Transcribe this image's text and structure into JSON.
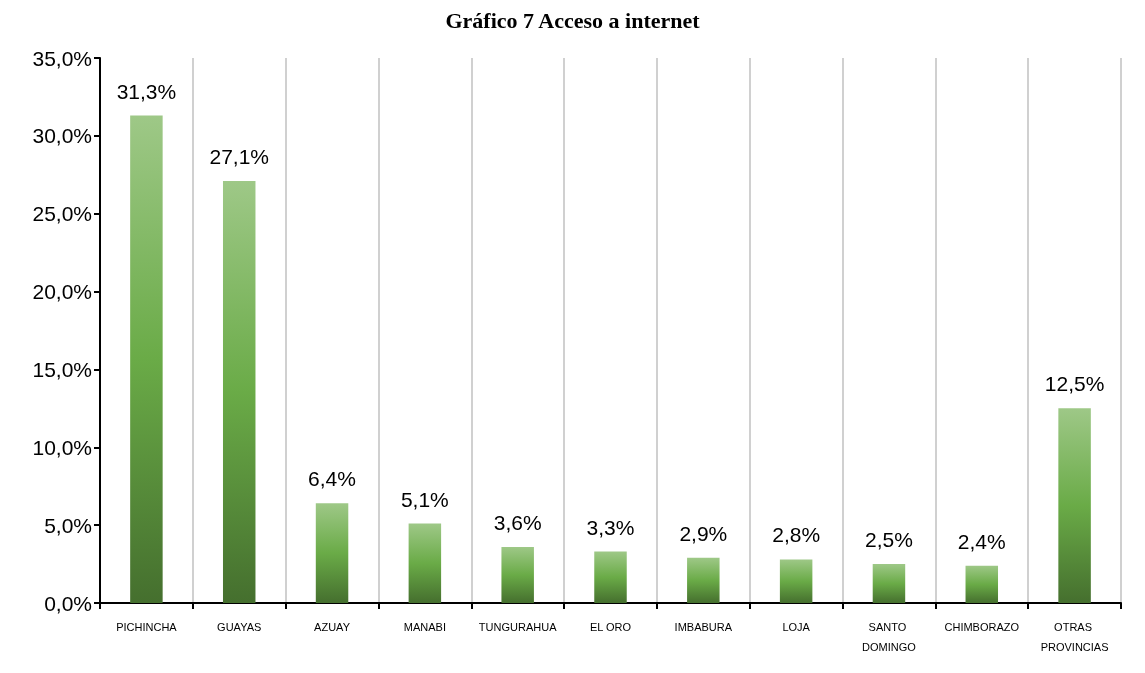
{
  "chart_data": {
    "type": "bar",
    "title": "Gráfico 7 Acceso a internet",
    "categories": [
      "PICHINCHA",
      "GUAYAS",
      "AZUAY",
      "MANABI",
      "TUNGURAHUA",
      "EL ORO",
      "IMBABURA",
      "LOJA",
      "SANTO DOMINGO",
      "CHIMBORAZO",
      "OTRAS PROVINCIAS"
    ],
    "values": [
      31.3,
      27.1,
      6.4,
      5.1,
      3.6,
      3.3,
      2.9,
      2.8,
      2.5,
      2.4,
      12.5
    ],
    "value_labels": [
      "31,3%",
      "27,1%",
      "6,4%",
      "5,1%",
      "3,6%",
      "3,3%",
      "2,9%",
      "2,8%",
      "2,5%",
      "2,4%",
      "12,5%"
    ],
    "color": "#6aab47",
    "ylim": [
      0,
      35
    ],
    "yticks": [
      {
        "value": 0,
        "label": "0,0%"
      },
      {
        "value": 5,
        "label": "5,0%"
      },
      {
        "value": 10,
        "label": "10,0%"
      },
      {
        "value": 15,
        "label": "15,0%"
      },
      {
        "value": 20,
        "label": "20,0%"
      },
      {
        "value": 25,
        "label": "25,0%"
      },
      {
        "value": 30,
        "label": "30,0%"
      },
      {
        "value": 35,
        "label": "35,0%"
      }
    ],
    "grid": "x"
  }
}
